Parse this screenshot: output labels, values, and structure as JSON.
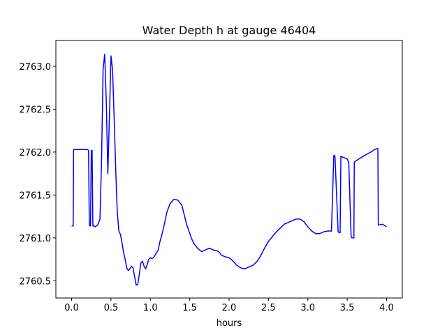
{
  "chart_data": {
    "type": "line",
    "title": "Water Depth h at gauge 46404",
    "xlabel": "hours",
    "ylabel": "",
    "xlim": [
      -0.2,
      4.2
    ],
    "ylim": [
      2760.3,
      2763.3
    ],
    "xticks": [
      0.0,
      0.5,
      1.0,
      1.5,
      2.0,
      2.5,
      3.0,
      3.5,
      4.0
    ],
    "xtick_labels": [
      "0.0",
      "0.5",
      "1.0",
      "1.5",
      "2.0",
      "2.5",
      "3.0",
      "3.5",
      "4.0"
    ],
    "yticks": [
      2760.5,
      2761.0,
      2761.5,
      2762.0,
      2762.5,
      2763.0
    ],
    "ytick_labels": [
      "2760.5",
      "2761.0",
      "2761.5",
      "2762.0",
      "2762.5",
      "2763.0"
    ],
    "grid": false,
    "color": "#0000ff",
    "series": [
      {
        "x": [
          0.0,
          0.02,
          0.025,
          0.1,
          0.2,
          0.215,
          0.225,
          0.24,
          0.25,
          0.26,
          0.27,
          0.28,
          0.3,
          0.33,
          0.36,
          0.38,
          0.4,
          0.42,
          0.44,
          0.46,
          0.48,
          0.5,
          0.52,
          0.54,
          0.56,
          0.58,
          0.6,
          0.62,
          0.64,
          0.66,
          0.68,
          0.7,
          0.72,
          0.74,
          0.76,
          0.78,
          0.8,
          0.82,
          0.84,
          0.86,
          0.88,
          0.9,
          0.92,
          0.94,
          0.96,
          0.98,
          1.0,
          1.02,
          1.04,
          1.06,
          1.08,
          1.1,
          1.12,
          1.15,
          1.18,
          1.21,
          1.25,
          1.3,
          1.35,
          1.4,
          1.43,
          1.46,
          1.49,
          1.52,
          1.55,
          1.6,
          1.65,
          1.7,
          1.75,
          1.8,
          1.85,
          1.88,
          1.9,
          1.95,
          2.0,
          2.05,
          2.1,
          2.15,
          2.2,
          2.25,
          2.3,
          2.35,
          2.4,
          2.45,
          2.5,
          2.6,
          2.7,
          2.8,
          2.85,
          2.9,
          2.95,
          3.0,
          3.05,
          3.1,
          3.15,
          3.2,
          3.25,
          3.3,
          3.33,
          3.34,
          3.345,
          3.385,
          3.39,
          3.4,
          3.41,
          3.42,
          3.5,
          3.52,
          3.55,
          3.56,
          3.585,
          3.59,
          3.6,
          3.7,
          3.8,
          3.85,
          3.88,
          3.89,
          3.895,
          3.9,
          3.95,
          4.0
        ],
        "y": [
          2761.14,
          2761.14,
          2762.03,
          2762.03,
          2762.03,
          2762.02,
          2761.14,
          2761.14,
          2762.02,
          2762.02,
          2761.14,
          2761.14,
          2761.13,
          2761.15,
          2761.22,
          2761.9,
          2762.97,
          2763.14,
          2762.6,
          2761.75,
          2762.4,
          2763.12,
          2762.96,
          2762.4,
          2761.8,
          2761.3,
          2761.08,
          2761.04,
          2760.94,
          2760.83,
          2760.75,
          2760.65,
          2760.62,
          2760.64,
          2760.67,
          2760.65,
          2760.55,
          2760.45,
          2760.46,
          2760.58,
          2760.71,
          2760.73,
          2760.67,
          2760.64,
          2760.69,
          2760.75,
          2760.77,
          2760.76,
          2760.77,
          2760.8,
          2760.83,
          2760.86,
          2760.95,
          2761.05,
          2761.17,
          2761.3,
          2761.4,
          2761.45,
          2761.44,
          2761.38,
          2761.27,
          2761.16,
          2761.08,
          2761.0,
          2760.94,
          2760.88,
          2760.84,
          2760.86,
          2760.88,
          2760.86,
          2760.85,
          2760.83,
          2760.8,
          2760.78,
          2760.77,
          2760.73,
          2760.68,
          2760.65,
          2760.64,
          2760.66,
          2760.68,
          2760.72,
          2760.79,
          2760.88,
          2760.96,
          2761.07,
          2761.16,
          2761.2,
          2761.22,
          2761.22,
          2761.19,
          2761.13,
          2761.08,
          2761.05,
          2761.05,
          2761.07,
          2761.08,
          2761.08,
          2761.96,
          2761.96,
          2761.95,
          2761.07,
          2761.07,
          2761.06,
          2761.06,
          2761.95,
          2761.92,
          2761.88,
          2761.01,
          2761.0,
          2761.0,
          2761.88,
          2761.89,
          2761.95,
          2762.0,
          2762.03,
          2762.04,
          2762.04,
          2761.15,
          2761.15,
          2761.16,
          2761.13
        ]
      }
    ]
  }
}
